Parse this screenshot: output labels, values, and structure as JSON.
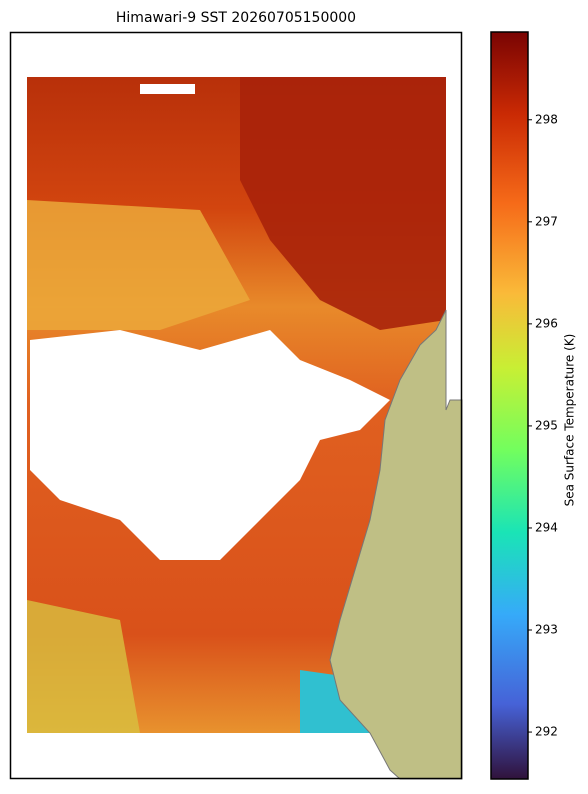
{
  "title": "Himawari-9 SST 20260705150000",
  "colorbar": {
    "label": "Sea Surface Temperature (K)",
    "lim": [
      291.54,
      298.86
    ],
    "ticks": [
      292,
      293,
      294,
      295,
      296,
      297,
      298
    ]
  }
}
